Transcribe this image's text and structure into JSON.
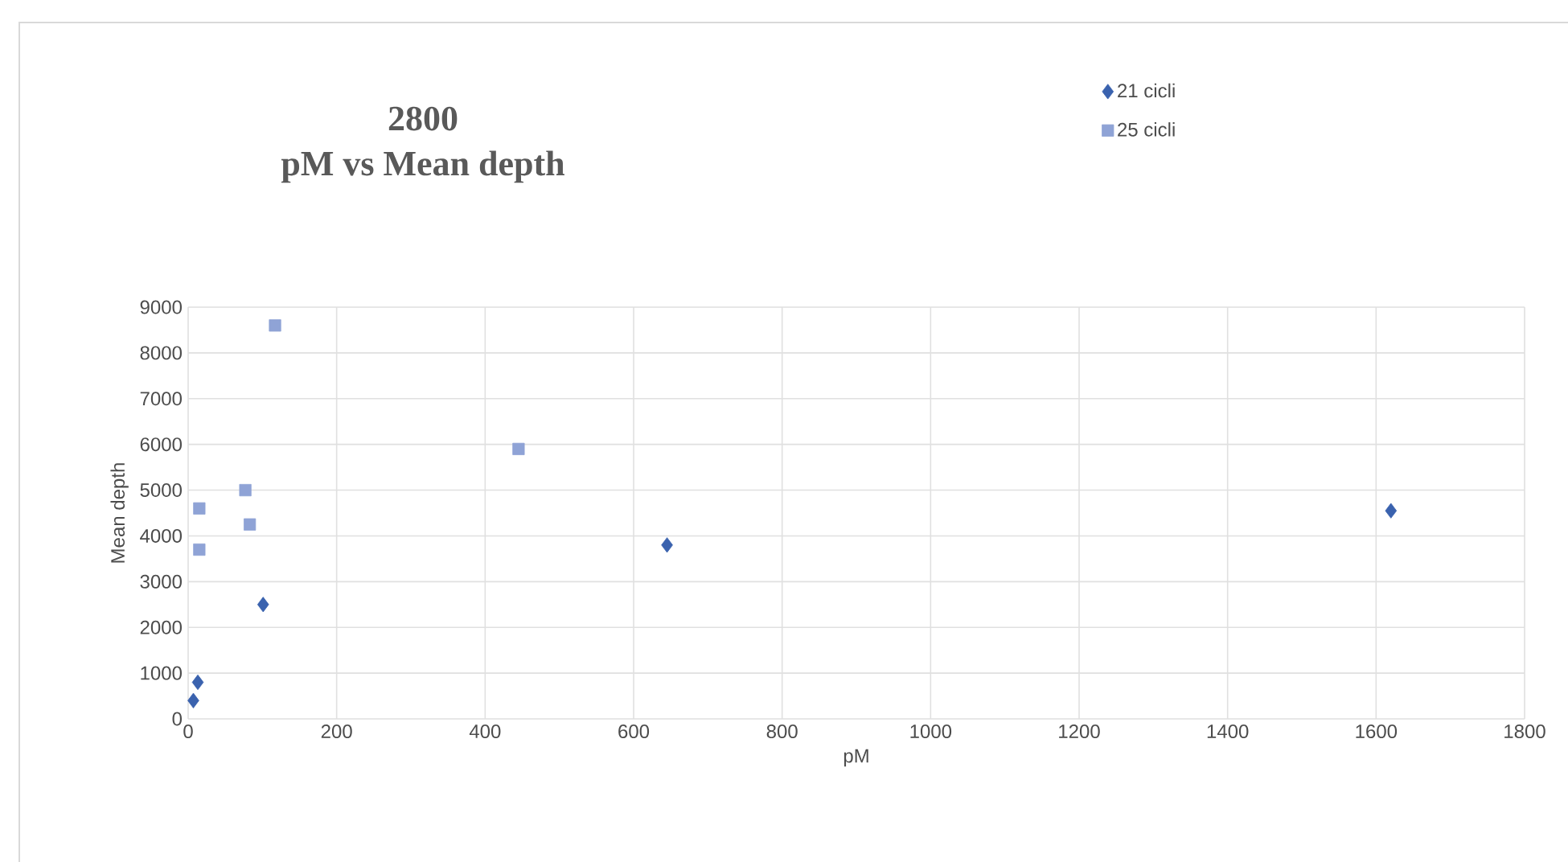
{
  "chart_data": {
    "type": "scatter",
    "title": "2800\npM vs Mean depth",
    "xlabel": "pM",
    "ylabel": "Mean depth",
    "xlim": [
      0,
      1800
    ],
    "xticks": [
      0,
      200,
      400,
      600,
      800,
      1000,
      1200,
      1400,
      1600,
      1800
    ],
    "ylim": [
      0,
      9000
    ],
    "yticks": [
      0,
      1000,
      2000,
      3000,
      4000,
      5000,
      6000,
      7000,
      8000,
      9000
    ],
    "grid": true,
    "legend": "top right",
    "series": [
      {
        "name": "21 cicli",
        "color": "#3a62ae",
        "marker": "diamond",
        "x": [
          7,
          13,
          101,
          645,
          1620
        ],
        "values": [
          400,
          800,
          2500,
          3800,
          4550
        ]
      },
      {
        "name": "25 cicli",
        "color": "#8fa3d6",
        "marker": "square",
        "x": [
          15,
          15,
          77,
          83,
          117,
          445
        ],
        "values": [
          4600,
          3700,
          5000,
          4250,
          8600,
          5900
        ]
      }
    ]
  }
}
